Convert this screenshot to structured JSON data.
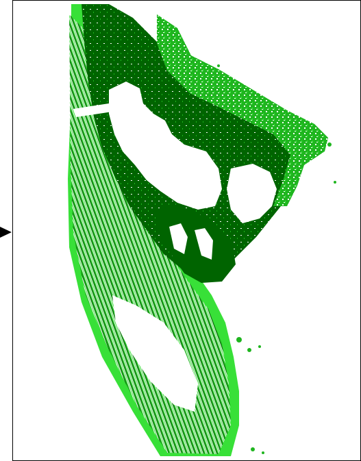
{
  "map": {
    "legend_colors": {
      "dense_vegetation": "#006400",
      "medium_vegetation": "#1fb51f",
      "light_vegetation": "#38e038",
      "water_or_bare": "#ffffff"
    },
    "icons": {
      "pointer": "triangle-right-icon"
    }
  }
}
